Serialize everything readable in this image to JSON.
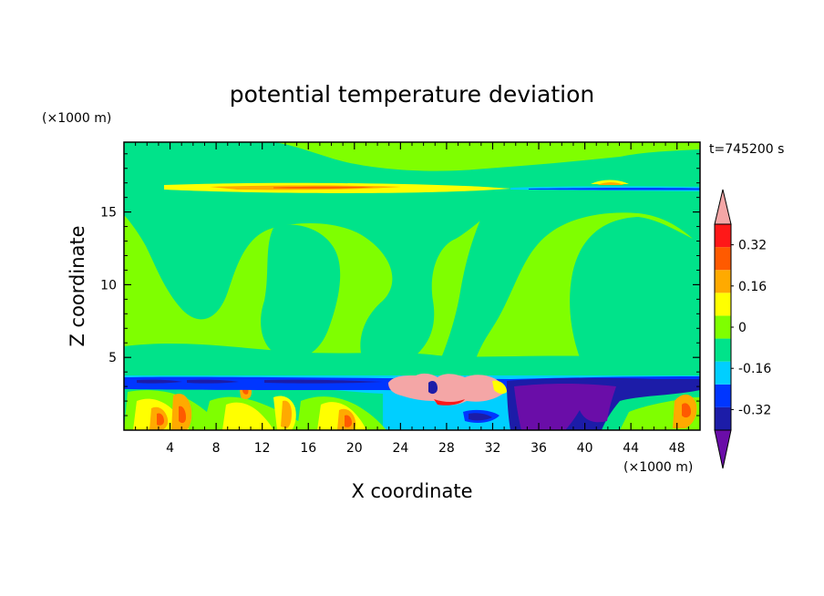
{
  "chart_data": {
    "type": "heatmap",
    "title": "potential temperature deviation",
    "xlabel": "X coordinate",
    "ylabel": "Z coordinate",
    "x_unit": "(×1000 m)",
    "y_unit": "(×1000 m)",
    "time_label": "t=745200 s",
    "xlim": [
      0,
      50
    ],
    "ylim": [
      0,
      19.8
    ],
    "xticks": [
      "4",
      "8",
      "12",
      "16",
      "20",
      "24",
      "28",
      "32",
      "36",
      "40",
      "44",
      "48"
    ],
    "yticks": [
      "5",
      "10",
      "15"
    ],
    "colorbar": {
      "levels": [
        -0.4,
        -0.32,
        -0.24,
        -0.16,
        -0.08,
        0,
        0.08,
        0.16,
        0.24,
        0.32,
        0.4
      ],
      "colors": [
        "#6a0da8",
        "#1c1ca8",
        "#0036ff",
        "#00cfff",
        "#00e38a",
        "#7fff00",
        "#ffff00",
        "#ffaa00",
        "#ff5a00",
        "#ff1818",
        "#f4a6a6"
      ],
      "tick_labels": [
        "0.32",
        "0.16",
        "0",
        "-0.16",
        "-0.32"
      ],
      "tick_values": [
        0.32,
        0.16,
        0,
        -0.16,
        -0.32
      ]
    },
    "field_description_regions": [
      {
        "name": "lower boundary layer warm cells",
        "x": [
          0,
          33
        ],
        "z": [
          0,
          3.5
        ],
        "value_range": [
          0.08,
          0.24
        ]
      },
      {
        "name": "inversion cold band",
        "x": [
          0,
          50
        ],
        "z": [
          3.3,
          3.7
        ],
        "value": -0.32
      },
      {
        "name": "warm anomaly",
        "x": [
          23,
          32
        ],
        "z": [
          2.5,
          3.9
        ],
        "value": 0.4
      },
      {
        "name": "cold pool",
        "x": [
          33,
          42
        ],
        "z": [
          0,
          3.7
        ],
        "value": -0.4
      },
      {
        "name": "tropopause warm band",
        "x": [
          8,
          33
        ],
        "z": [
          16.5,
          17.0
        ],
        "value": 0.24
      },
      {
        "name": "tropopause cold band",
        "x": [
          33,
          50
        ],
        "z": [
          16.6,
          16.9
        ],
        "value": -0.16
      }
    ]
  }
}
